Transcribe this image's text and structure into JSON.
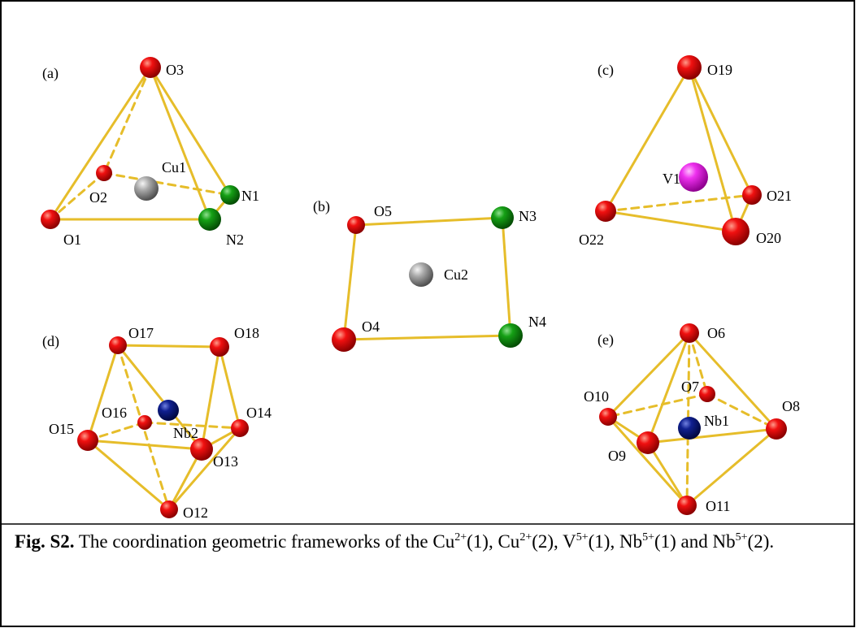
{
  "panels": [
    {
      "label": "(a)",
      "atoms": [
        "O3",
        "O2",
        "Cu1",
        "N1",
        "N2",
        "O1"
      ]
    },
    {
      "label": "(b)",
      "atoms": [
        "O5",
        "N3",
        "Cu2",
        "O4",
        "N4"
      ]
    },
    {
      "label": "(c)",
      "atoms": [
        "O19",
        "V1",
        "O21",
        "O22",
        "O20"
      ]
    },
    {
      "label": "(d)",
      "atoms": [
        "O17",
        "O18",
        "O16",
        "Nb2",
        "O14",
        "O15",
        "O13",
        "O12"
      ]
    },
    {
      "label": "(e)",
      "atoms": [
        "O6",
        "O7",
        "O10",
        "O8",
        "Nb1",
        "O9",
        "O11"
      ]
    }
  ],
  "caption": {
    "label": "Fig. S2.",
    "parts": [
      " The coordination geometric frameworks of the Cu",
      "2+",
      "(1), Cu",
      "2+",
      "(2), V",
      "5+",
      "(1), Nb",
      "5+",
      "(1) and Nb",
      "5+",
      "(2)."
    ]
  }
}
